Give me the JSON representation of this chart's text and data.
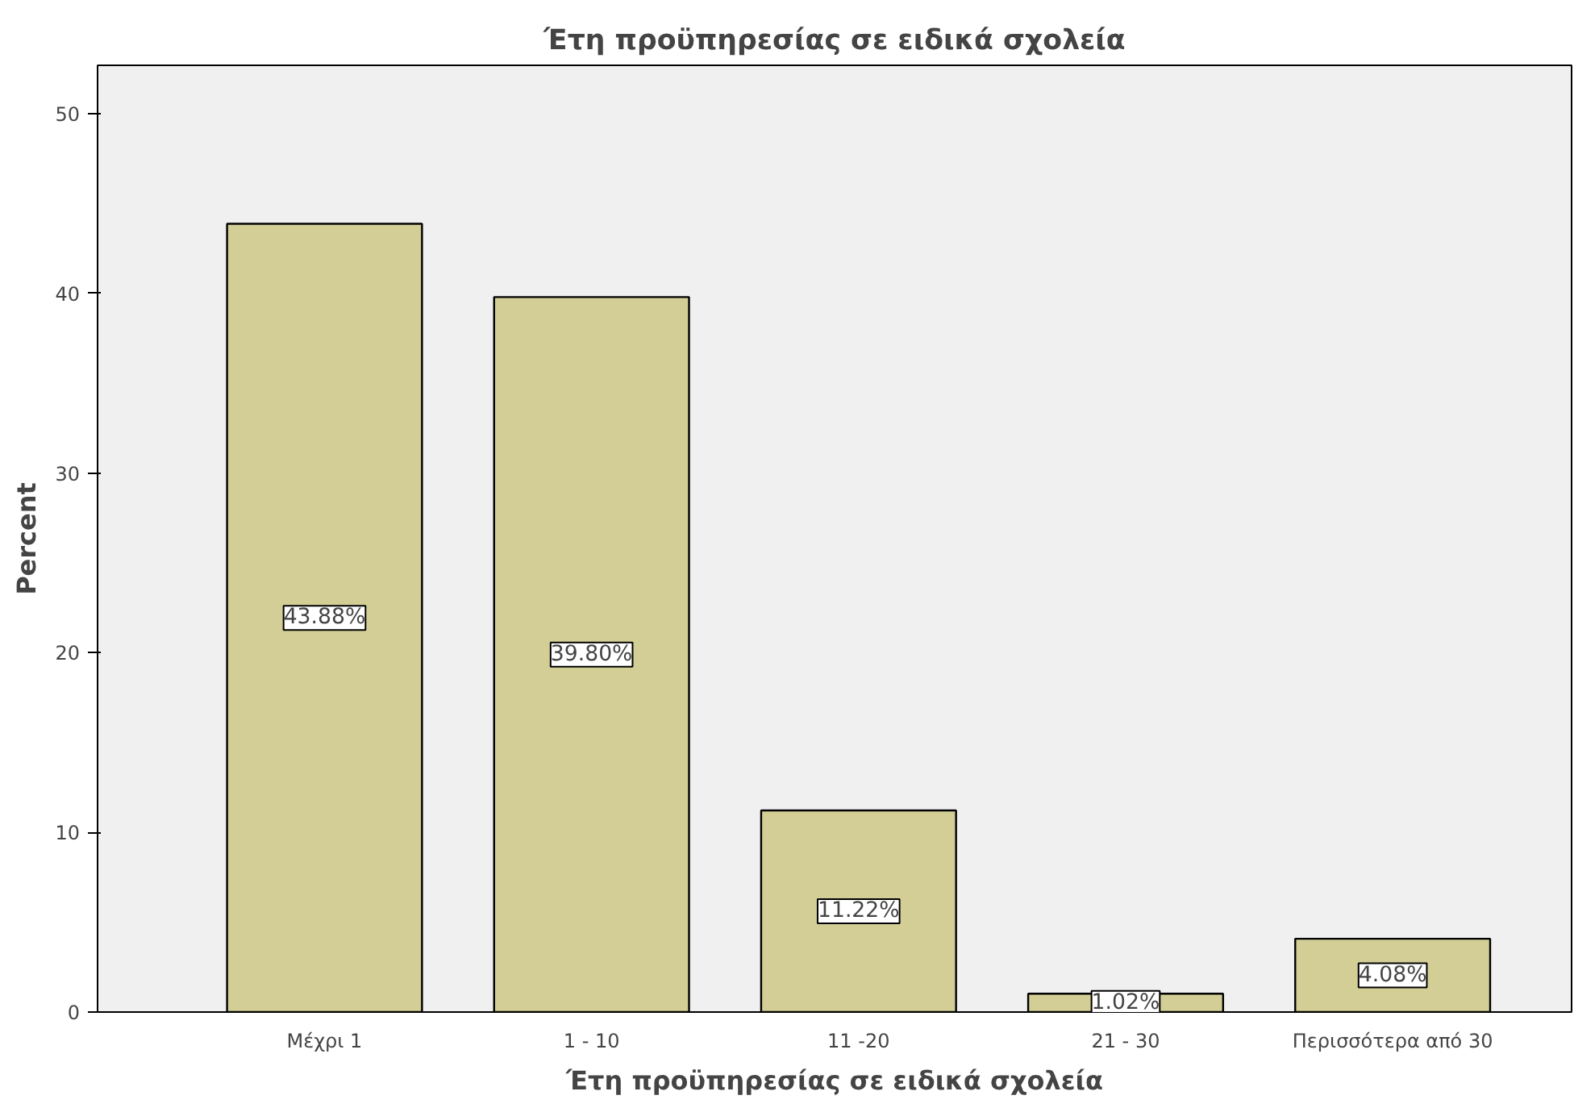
{
  "chart_data": {
    "type": "bar",
    "title": "Έτη προϋπηρεσίας σε ειδικά σχολεία",
    "xlabel": "Έτη προϋπηρεσίας σε ειδικά σχολεία",
    "ylabel": "Percent",
    "categories": [
      "Μέχρι 1",
      "1 - 10",
      "11 -20",
      "21 - 30",
      "Περισσότερα από 30"
    ],
    "values": [
      43.88,
      39.8,
      11.22,
      1.02,
      4.08
    ],
    "value_labels": [
      "43.88%",
      "39.80%",
      "11.22%",
      "1.02%",
      "4.08%"
    ],
    "color": "#d3ce96",
    "ylim": [
      0,
      52.7
    ],
    "yticks": [
      0,
      10,
      20,
      30,
      40,
      50
    ],
    "grid": false
  }
}
